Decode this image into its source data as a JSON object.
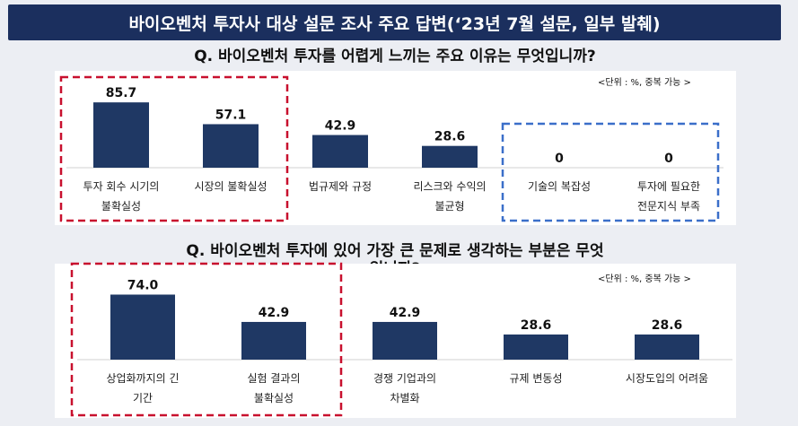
{
  "header": {
    "title": "바이오벤처 투자사 대상 설문 조사 주요 답변(‘23년 7월 설문, 일부 발췌)"
  },
  "chart_data": [
    {
      "type": "bar",
      "title": "Q. 바이오벤처 투자를 어렵게 느끼는 주요 이유는 무엇입니까?",
      "unit_note": "<단위 : %, 중복 가능 >",
      "categories": [
        [
          "투자 회수 시기의",
          "불확실성"
        ],
        [
          "시장의 불확실성"
        ],
        [
          "법규제와 규정"
        ],
        [
          "리스크와 수익의",
          "불균형"
        ],
        [
          "기술의 복잡성"
        ],
        [
          "투자에 필요한",
          "전문지식 부족"
        ]
      ],
      "values": [
        85.7,
        57.1,
        42.9,
        28.6,
        0,
        0
      ],
      "value_labels": [
        "85.7",
        "57.1",
        "42.9",
        "28.6",
        "0",
        "0"
      ],
      "ylim": [
        0,
        100
      ],
      "highlight_red": [
        0,
        1
      ],
      "highlight_blue": [
        4,
        5
      ],
      "colors": {
        "bar": "#1f3864",
        "red_box": "#c8102e",
        "blue_box": "#3b6fc9"
      }
    },
    {
      "type": "bar",
      "title": "Q. 바이오벤처 투자에 있어 가장 큰 문제로 생각하는 부분은 무엇입니까?",
      "title_lines": [
        "Q. 바이오벤처 투자에 있어 가장 큰 문제로 생각하는 부분은 무엇",
        "입니까?"
      ],
      "unit_note": "<단위 : %, 중복 가능 >",
      "categories": [
        [
          "상업화까지의 긴",
          "기간"
        ],
        [
          "실험 결과의",
          "불확실성"
        ],
        [
          "경쟁 기업과의",
          "차별화"
        ],
        [
          "규제 변동성"
        ],
        [
          "시장도입의 어려움"
        ]
      ],
      "values": [
        74.0,
        42.9,
        42.9,
        28.6,
        28.6
      ],
      "value_labels": [
        "74.0",
        "42.9",
        "42.9",
        "28.6",
        "28.6"
      ],
      "ylim": [
        0,
        100
      ],
      "highlight_red": [
        0,
        1
      ],
      "colors": {
        "bar": "#1f3864",
        "red_box": "#c8102e"
      }
    }
  ]
}
